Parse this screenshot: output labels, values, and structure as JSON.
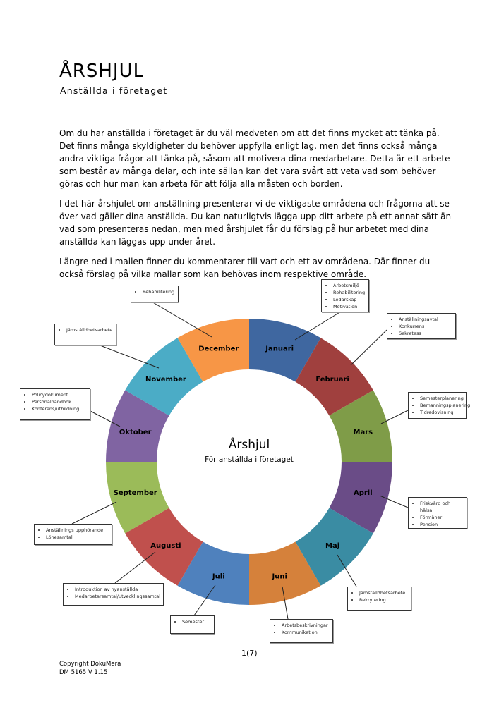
{
  "title": "ÅRSHJUL",
  "subtitle": "Anställda i företaget",
  "paragraphs": [
    "Om du har anställda i företaget är du väl medveten om att det finns mycket att tänka på. Det finns många skyldigheter du behöver uppfylla enligt lag, men det finns också många andra viktiga frågor att tänka på, såsom att motivera dina medarbetare. Detta är ett arbete som består av många delar, och inte sällan kan det vara svårt att veta vad som behöver göras och hur man kan arbeta för att följa alla måsten och borden.",
    "I det här årshjulet om anställning presenterar vi de viktigaste områdena och frågorna att se över vad gäller dina anställda. Du kan naturligtvis lägga upp ditt arbete på ett annat sätt än vad som presenteras nedan, men med årshjulet får du förslag på hur arbetet med dina anställda kan läggas upp under året.",
    "Längre ned i mallen finner du kommentarer till vart och ett av områdena. Där finner du också förslag på vilka mallar som kan behövas inom respektive område."
  ],
  "wheel": {
    "center_title": "Årshjul",
    "center_subtitle": "För anställda i företaget",
    "months": [
      {
        "name": "Januari",
        "color": "#3f67a0",
        "items": [
          "Arbetsmiljö",
          "Rehabilitering",
          "Ledarskap",
          "Motivation"
        ]
      },
      {
        "name": "Februari",
        "color": "#a0403e",
        "items": [
          "Anställningsavtal",
          "Konkurrens",
          "Sekretess"
        ]
      },
      {
        "name": "Mars",
        "color": "#7f9c48",
        "items": [
          "Semesterplanering",
          "Bemanningsplanering",
          "Tidredovisning"
        ]
      },
      {
        "name": "April",
        "color": "#6a4c87",
        "items": [
          "Friskvård och hälsa",
          "Förmåner",
          "Pension"
        ]
      },
      {
        "name": "Maj",
        "color": "#3a8ca3",
        "items": [
          "Jämställdhetsarbete",
          "Rekrytering"
        ]
      },
      {
        "name": "Juni",
        "color": "#d5813b",
        "items": [
          "Arbetsbeskrivningar",
          "Kommunikation"
        ]
      },
      {
        "name": "Juli",
        "color": "#4f81bd",
        "items": [
          "Semester"
        ]
      },
      {
        "name": "Augusti",
        "color": "#c0504d",
        "items": [
          "Introduktion av nyanställda",
          "Medarbetarsamtal/utvecklingssamtal"
        ]
      },
      {
        "name": "September",
        "color": "#9bbb59",
        "items": [
          "Anställnings upphörande",
          "Lönesamtal"
        ]
      },
      {
        "name": "Oktober",
        "color": "#8064a2",
        "items": [
          "Policydokument",
          "Personalhandbok",
          "Konferens/utbildning"
        ]
      },
      {
        "name": "November",
        "color": "#4bacc6",
        "items": [
          "Jämställdhetsarbete"
        ]
      },
      {
        "name": "December",
        "color": "#f79646",
        "items": [
          "Rehabilitering"
        ]
      }
    ]
  },
  "footer": {
    "page": "1(7)",
    "copyright": "Copyright DokuMera",
    "doc_id": "DM 5165 V 1.15"
  }
}
